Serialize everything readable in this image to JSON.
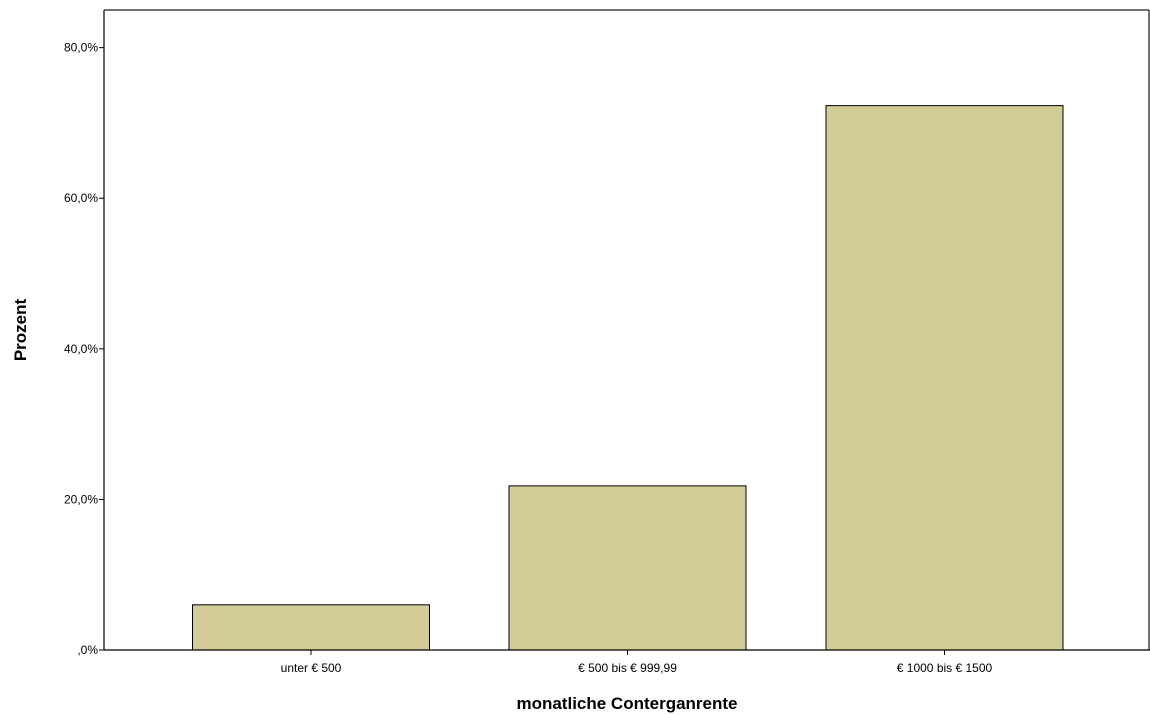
{
  "chart_data": {
    "type": "bar",
    "title": "",
    "xlabel": "monatliche Conterganrente",
    "ylabel": "Prozent",
    "categories": [
      "unter € 500",
      "€ 500 bis € 999,99",
      "€ 1000 bis € 1500"
    ],
    "values": [
      6.0,
      21.8,
      72.3
    ],
    "ylim": [
      0,
      85
    ],
    "yticks": [
      0,
      20,
      40,
      60,
      80
    ],
    "ytick_labels": [
      ",0%",
      "20,0%",
      "40,0%",
      "60,0%",
      "80,0%"
    ],
    "grid": false,
    "legend": "none",
    "colors": {
      "bar_fill": "#d3cc96",
      "bar_stroke": "#000000",
      "axis": "#000000",
      "frame": "#444444"
    }
  }
}
